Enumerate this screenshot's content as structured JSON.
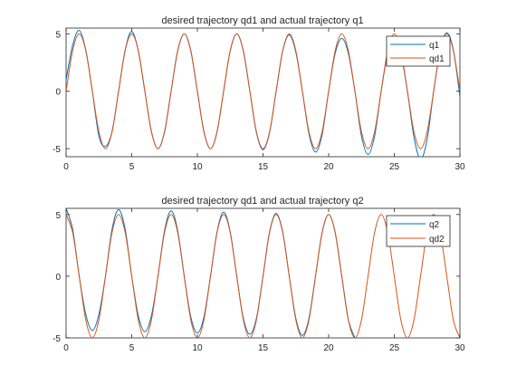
{
  "chart_data": [
    {
      "type": "line",
      "title": "desired trajectory qd1 and actual trajectory q1",
      "xlabel": "",
      "ylabel": "",
      "xlim": [
        0,
        30
      ],
      "ylim": [
        -5.7,
        5.5
      ],
      "xticks": [
        0,
        5,
        10,
        15,
        20,
        25,
        30
      ],
      "yticks": [
        -5,
        0,
        5
      ],
      "grid": false,
      "legend_position": "top-right",
      "series": [
        {
          "name": "q1",
          "color": "#0072BD",
          "x": [
            0,
            0.5,
            1,
            1.5,
            2,
            2.5,
            3,
            3.5,
            4,
            4.5,
            5,
            5.5,
            6,
            6.5,
            7,
            7.5,
            8,
            8.5,
            9,
            9.5,
            10,
            10.5,
            11,
            11.5,
            12,
            12.5,
            13,
            13.5,
            14,
            14.5,
            15,
            15.5,
            16,
            16.5,
            17,
            17.5,
            18,
            18.5,
            19,
            19.5,
            20,
            20.5,
            21,
            21.5,
            22,
            22.5,
            23,
            23.5,
            24,
            24.5,
            25,
            25.5,
            26,
            26.5,
            27,
            27.5,
            28,
            28.5,
            29,
            29.5,
            30
          ],
          "y": [
            1.0,
            4.0,
            5.3,
            3.6,
            0.0,
            -3.9,
            -4.8,
            -3.5,
            0.0,
            3.6,
            5.2,
            3.5,
            0.0,
            -3.5,
            -5.0,
            -3.5,
            0.0,
            3.5,
            5.0,
            3.5,
            0.0,
            -3.5,
            -5.0,
            -3.5,
            0.0,
            3.5,
            5.0,
            3.5,
            0.0,
            -3.6,
            -5.1,
            -3.6,
            0.0,
            3.5,
            4.9,
            3.4,
            0.0,
            -3.7,
            -5.3,
            -3.8,
            0.0,
            3.3,
            4.6,
            3.3,
            0.0,
            -3.9,
            -5.5,
            -3.9,
            0.0,
            3.3,
            4.6,
            3.3,
            0.0,
            -4.0,
            -5.9,
            -4.2,
            0.0,
            3.6,
            5.1,
            3.6,
            -0.5
          ]
        },
        {
          "name": "qd1",
          "color": "#D95319",
          "x": [
            0,
            0.5,
            1,
            1.5,
            2,
            2.5,
            3,
            3.5,
            4,
            4.5,
            5,
            5.5,
            6,
            6.5,
            7,
            7.5,
            8,
            8.5,
            9,
            9.5,
            10,
            10.5,
            11,
            11.5,
            12,
            12.5,
            13,
            13.5,
            14,
            14.5,
            15,
            15.5,
            16,
            16.5,
            17,
            17.5,
            18,
            18.5,
            19,
            19.5,
            20,
            20.5,
            21,
            21.5,
            22,
            22.5,
            23,
            23.5,
            24,
            24.5,
            25,
            25.5,
            26,
            26.5,
            27,
            27.5,
            28,
            28.5,
            29,
            29.5,
            30
          ],
          "y": [
            0.0,
            3.54,
            5.0,
            3.54,
            0.0,
            -3.54,
            -5.0,
            -3.54,
            0.0,
            3.54,
            5.0,
            3.54,
            0.0,
            -3.54,
            -5.0,
            -3.54,
            0.0,
            3.54,
            5.0,
            3.54,
            0.0,
            -3.54,
            -5.0,
            -3.54,
            0.0,
            3.54,
            5.0,
            3.54,
            0.0,
            -3.54,
            -5.0,
            -3.54,
            0.0,
            3.54,
            5.0,
            3.54,
            0.0,
            -3.54,
            -5.0,
            -3.54,
            0.0,
            3.54,
            5.0,
            3.54,
            0.0,
            -3.54,
            -5.0,
            -3.54,
            0.0,
            3.54,
            5.0,
            3.54,
            0.0,
            -3.54,
            -5.0,
            -3.54,
            0.0,
            3.54,
            5.0,
            3.54,
            0.0
          ]
        }
      ]
    },
    {
      "type": "line",
      "title": "desired trajectory qd1 and actual trajectory q2",
      "xlabel": "",
      "ylabel": "",
      "xlim": [
        0,
        30
      ],
      "ylim": [
        -5,
        5.5
      ],
      "xticks": [
        0,
        5,
        10,
        15,
        20,
        25,
        30
      ],
      "yticks": [
        -5,
        0,
        5
      ],
      "grid": false,
      "legend_position": "top-right",
      "series": [
        {
          "name": "q2",
          "color": "#0072BD",
          "x": [
            0,
            0.5,
            1,
            1.5,
            2,
            2.5,
            3,
            3.5,
            4,
            4.5,
            5,
            5.5,
            6,
            6.5,
            7,
            7.5,
            8,
            8.5,
            9,
            9.5,
            10,
            10.5,
            11,
            11.5,
            12,
            12.5,
            13,
            13.5,
            14,
            14.5,
            15,
            15.5,
            16,
            16.5,
            17,
            17.5,
            18,
            18.5,
            19,
            19.5,
            20,
            20.5,
            21,
            21.5,
            22
          ],
          "y": [
            5.5,
            3.8,
            0.0,
            -3.1,
            -4.4,
            -3.1,
            0.0,
            3.8,
            5.4,
            3.8,
            0.0,
            -3.2,
            -4.5,
            -3.2,
            0.0,
            3.7,
            5.3,
            3.7,
            0.0,
            -3.3,
            -4.6,
            -3.3,
            0.0,
            3.6,
            5.2,
            3.6,
            0.0,
            -3.4,
            -4.7,
            -3.4,
            0.0,
            3.6,
            5.1,
            3.6,
            0.0,
            -3.4,
            -4.8,
            -3.4,
            0.0,
            3.5,
            5.0,
            3.5,
            0.0,
            -3.5,
            -5.0
          ]
        },
        {
          "name": "qd2",
          "color": "#D95319",
          "x": [
            0,
            0.5,
            1,
            1.5,
            2,
            2.5,
            3,
            3.5,
            4,
            4.5,
            5,
            5.5,
            6,
            6.5,
            7,
            7.5,
            8,
            8.5,
            9,
            9.5,
            10,
            10.5,
            11,
            11.5,
            12,
            12.5,
            13,
            13.5,
            14,
            14.5,
            15,
            15.5,
            16,
            16.5,
            17,
            17.5,
            18,
            18.5,
            19,
            19.5,
            20,
            20.5,
            21,
            21.5,
            22,
            22.5,
            23,
            23.5,
            24,
            24.5,
            25,
            25.5,
            26,
            26.5,
            27,
            27.5,
            28,
            28.5,
            29,
            29.5,
            30
          ],
          "y": [
            5.0,
            3.54,
            0.0,
            -3.54,
            -5.0,
            -3.54,
            0.0,
            3.54,
            5.0,
            3.54,
            0.0,
            -3.54,
            -5.0,
            -3.54,
            0.0,
            3.54,
            5.0,
            3.54,
            0.0,
            -3.54,
            -5.0,
            -3.54,
            0.0,
            3.54,
            5.0,
            3.54,
            0.0,
            -3.54,
            -5.0,
            -3.54,
            0.0,
            3.54,
            5.0,
            3.54,
            0.0,
            -3.54,
            -5.0,
            -3.54,
            0.0,
            3.54,
            5.0,
            3.54,
            0.0,
            -3.54,
            -5.0,
            -3.54,
            0.0,
            3.54,
            5.0,
            3.54,
            0.0,
            -3.54,
            -5.0,
            -3.54,
            0.0,
            3.54,
            5.0,
            3.54,
            0.0,
            -3.54,
            -5.0
          ]
        }
      ]
    }
  ]
}
